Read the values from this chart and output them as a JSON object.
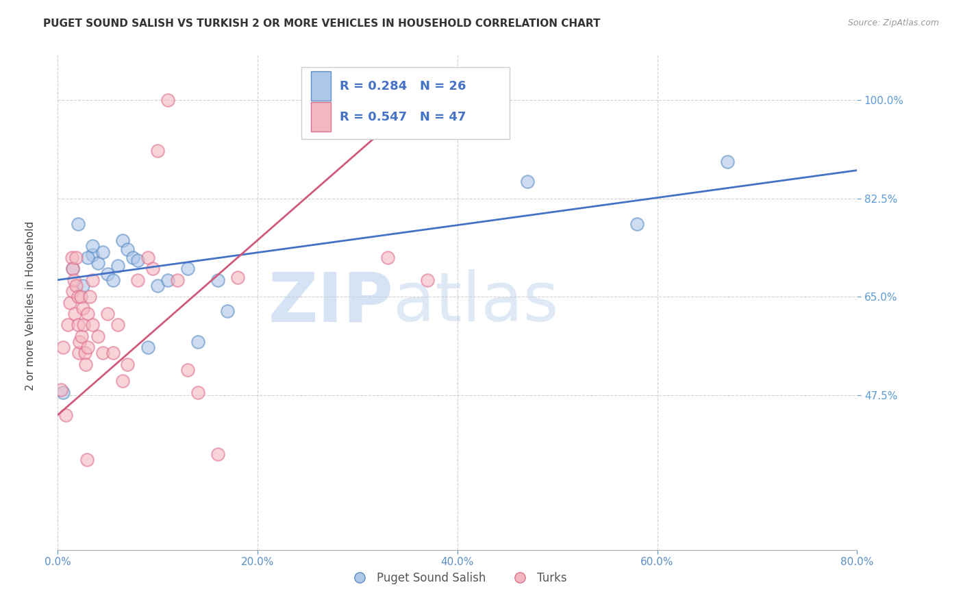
{
  "title": "PUGET SOUND SALISH VS TURKISH 2 OR MORE VEHICLES IN HOUSEHOLD CORRELATION CHART",
  "source": "Source: ZipAtlas.com",
  "ylabel": "2 or more Vehicles in Household",
  "legend_label_1": "Puget Sound Salish",
  "legend_label_2": "Turks",
  "R1": 0.284,
  "N1": 26,
  "R2": 0.547,
  "N2": 47,
  "color_blue_fill": "#aec6e8",
  "color_blue_edge": "#5b8ec4",
  "color_pink_fill": "#f4b8c1",
  "color_pink_edge": "#e07090",
  "color_blue_line": "#4472c4",
  "color_pink_line": "#d05878",
  "color_axis_labels": "#5b8ec4",
  "color_right_yticks": "#5b9bd5",
  "xmin": 0.0,
  "xmax": 80.0,
  "ymin": 20.0,
  "ymax": 108.0,
  "yticks": [
    47.5,
    65.0,
    82.5,
    100.0
  ],
  "xticks": [
    0.0,
    20.0,
    40.0,
    60.0,
    80.0
  ],
  "blue_scatter_x": [
    3.5,
    3.5,
    4.0,
    4.5,
    5.0,
    5.5,
    6.0,
    6.5,
    7.0,
    7.5,
    8.0,
    9.0,
    10.0,
    11.0,
    13.0,
    14.0,
    16.0,
    17.0,
    1.5,
    2.0,
    2.5,
    3.0,
    0.5,
    47.0,
    58.0,
    67.0
  ],
  "blue_scatter_y": [
    72.5,
    74.0,
    71.0,
    73.0,
    69.0,
    68.0,
    70.5,
    75.0,
    73.5,
    72.0,
    71.5,
    56.0,
    67.0,
    68.0,
    70.0,
    57.0,
    68.0,
    62.5,
    70.0,
    78.0,
    67.0,
    72.0,
    48.0,
    85.5,
    78.0,
    89.0
  ],
  "pink_scatter_x": [
    0.3,
    0.5,
    0.8,
    1.0,
    1.2,
    1.4,
    1.5,
    1.5,
    1.6,
    1.7,
    1.8,
    1.8,
    2.0,
    2.0,
    2.1,
    2.2,
    2.3,
    2.4,
    2.5,
    2.6,
    2.7,
    2.8,
    3.0,
    3.0,
    3.2,
    3.5,
    3.5,
    4.0,
    4.5,
    5.0,
    5.5,
    6.0,
    6.5,
    7.0,
    8.0,
    9.0,
    9.5,
    10.0,
    11.0,
    12.0,
    13.0,
    14.0,
    16.0,
    18.0,
    33.0,
    37.0,
    2.9
  ],
  "pink_scatter_y": [
    48.5,
    56.0,
    44.0,
    60.0,
    64.0,
    72.0,
    66.0,
    70.0,
    68.0,
    62.0,
    67.0,
    72.0,
    65.0,
    60.0,
    55.0,
    57.0,
    65.0,
    58.0,
    63.0,
    60.0,
    55.0,
    53.0,
    56.0,
    62.0,
    65.0,
    60.0,
    68.0,
    58.0,
    55.0,
    62.0,
    55.0,
    60.0,
    50.0,
    53.0,
    68.0,
    72.0,
    70.0,
    91.0,
    100.0,
    68.0,
    52.0,
    48.0,
    37.0,
    68.5,
    72.0,
    68.0,
    36.0
  ],
  "blue_line_x": [
    0.0,
    80.0
  ],
  "blue_line_y": [
    68.0,
    87.5
  ],
  "pink_line_x": [
    0.0,
    37.0
  ],
  "pink_line_y": [
    44.0,
    101.5
  ],
  "watermark_zip": "ZIP",
  "watermark_atlas": "atlas",
  "background_color": "#ffffff"
}
